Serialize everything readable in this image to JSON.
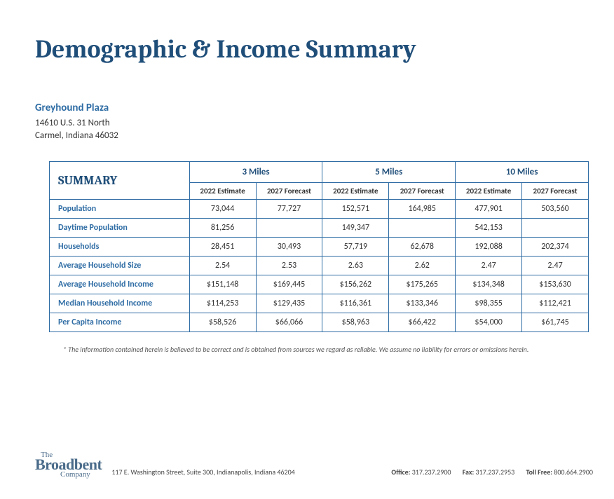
{
  "title": "Demographic & Income Summary",
  "location": {
    "name": "Greyhound Plaza",
    "address_line1": "14610 U.S. 31 North",
    "address_line2": "Carmel, Indiana 46032"
  },
  "table": {
    "summary_label": "SUMMARY",
    "column_groups": [
      "3 Miles",
      "5 Miles",
      "10 Miles"
    ],
    "sub_columns": [
      "2022 Estimate",
      "2027 Forecast"
    ],
    "rows": [
      {
        "label": "Population",
        "values": [
          "73,044",
          "77,727",
          "152,571",
          "164,985",
          "477,901",
          "503,560"
        ]
      },
      {
        "label": "Daytime Population",
        "values": [
          "81,256",
          "",
          "149,347",
          "",
          "542,153",
          ""
        ]
      },
      {
        "label": "Households",
        "values": [
          "28,451",
          "30,493",
          "57,719",
          "62,678",
          "192,088",
          "202,374"
        ]
      },
      {
        "label": "Average Household Size",
        "values": [
          "2.54",
          "2.53",
          "2.63",
          "2.62",
          "2.47",
          "2.47"
        ]
      },
      {
        "label": "Average Household Income",
        "values": [
          "$151,148",
          "$169,445",
          "$156,262",
          "$175,265",
          "$134,348",
          "$153,630"
        ]
      },
      {
        "label": "Median Household Income",
        "values": [
          "$114,253",
          "$129,435",
          "$116,361",
          "$133,346",
          "$98,355",
          "$112,421"
        ]
      },
      {
        "label": "Per Capita Income",
        "values": [
          "$58,526",
          "$66,066",
          "$58,963",
          "$66,422",
          "$54,000",
          "$61,745"
        ]
      }
    ]
  },
  "disclaimer": "* The information contained herein is believed to be correct and is obtained from sources we regard as reliable.  We assume no liability for errors or omissions herein.",
  "footer": {
    "company": {
      "line1": "The",
      "line2": "Broadbent",
      "line3": "Company"
    },
    "address": "117 E. Washington Street, Suite 300, Indianapolis, Indiana 46204",
    "contacts": {
      "office_label": "Office:",
      "office": "317.237.2900",
      "fax_label": "Fax:",
      "fax": "317.237.2953",
      "tollfree_label": "Toll Free:",
      "tollfree": "800.664.2900"
    }
  },
  "colors": {
    "title": "#1f4e79",
    "accent": "#2e6ca4",
    "border": "#2e6ca4",
    "text": "#333333",
    "background": "#ffffff"
  }
}
